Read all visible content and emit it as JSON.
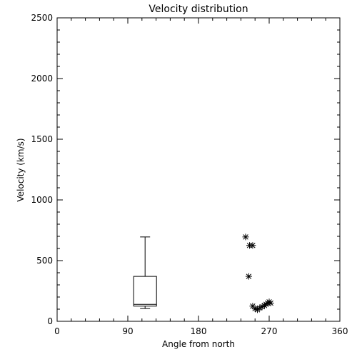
{
  "chart_data": {
    "type": "scatter",
    "title": "Velocity distribution",
    "xlabel": "Angle from north",
    "ylabel": "Velocity (km/s)",
    "xlim": [
      0,
      360
    ],
    "ylim": [
      0,
      2500
    ],
    "xticks": [
      0,
      90,
      180,
      270,
      360
    ],
    "yticks": [
      0,
      500,
      1000,
      1500,
      2000,
      2500
    ],
    "grid": false,
    "box": {
      "x": 112,
      "whisker_low": 105,
      "q1": 125,
      "median": 140,
      "q3": 370,
      "whisker_high": 695
    },
    "points": [
      {
        "x": 240,
        "y": 695
      },
      {
        "x": 245,
        "y": 625
      },
      {
        "x": 249,
        "y": 625
      },
      {
        "x": 244,
        "y": 370
      },
      {
        "x": 249,
        "y": 125
      },
      {
        "x": 252,
        "y": 105
      },
      {
        "x": 255,
        "y": 95
      },
      {
        "x": 258,
        "y": 110
      },
      {
        "x": 261,
        "y": 120
      },
      {
        "x": 264,
        "y": 130
      },
      {
        "x": 266,
        "y": 140
      },
      {
        "x": 268,
        "y": 150
      },
      {
        "x": 270,
        "y": 160
      },
      {
        "x": 272,
        "y": 150
      }
    ]
  }
}
